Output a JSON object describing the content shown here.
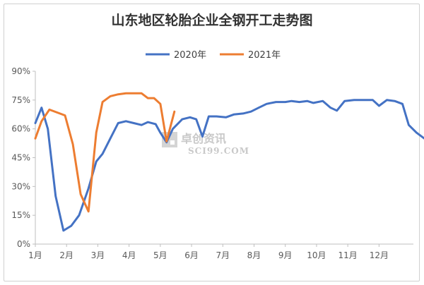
{
  "chart_data": {
    "type": "line",
    "title": "山东地区轮胎企业全钢开工走势图",
    "xlabel": "",
    "ylabel": "",
    "categories": [
      "1月",
      "2月",
      "3月",
      "4月",
      "5月",
      "6月",
      "7月",
      "8月",
      "9月",
      "10月",
      "11月",
      "12月"
    ],
    "y_ticks": [
      "0%",
      "15%",
      "30%",
      "45%",
      "60%",
      "75%",
      "90%"
    ],
    "ylim": [
      0,
      90
    ],
    "xlim": [
      1,
      13
    ],
    "grid": false,
    "legend_position": "top",
    "series": [
      {
        "name": "2020年",
        "color": "#4472C4",
        "points": [
          [
            1.0,
            63
          ],
          [
            1.2,
            71
          ],
          [
            1.4,
            60
          ],
          [
            1.65,
            25
          ],
          [
            1.9,
            7
          ],
          [
            2.15,
            9.5
          ],
          [
            2.4,
            15
          ],
          [
            2.7,
            29
          ],
          [
            2.95,
            43
          ],
          [
            3.15,
            47
          ],
          [
            3.4,
            55
          ],
          [
            3.65,
            63
          ],
          [
            3.9,
            64
          ],
          [
            4.15,
            63
          ],
          [
            4.4,
            62
          ],
          [
            4.6,
            63.5
          ],
          [
            4.85,
            62.5
          ],
          [
            5.0,
            58
          ],
          [
            5.2,
            53
          ],
          [
            5.4,
            60
          ],
          [
            5.7,
            65
          ],
          [
            5.95,
            66
          ],
          [
            6.15,
            65
          ],
          [
            6.35,
            56
          ],
          [
            6.55,
            66.5
          ],
          [
            6.8,
            66.5
          ],
          [
            7.1,
            66
          ],
          [
            7.35,
            67.5
          ],
          [
            7.65,
            68
          ],
          [
            7.9,
            69
          ],
          [
            8.15,
            71
          ],
          [
            8.4,
            73
          ],
          [
            8.7,
            74
          ],
          [
            9.0,
            74
          ],
          [
            9.2,
            74.5
          ],
          [
            9.45,
            74
          ],
          [
            9.7,
            74.5
          ],
          [
            9.9,
            73.5
          ],
          [
            10.2,
            74.5
          ],
          [
            10.45,
            71
          ],
          [
            10.65,
            69.5
          ],
          [
            10.9,
            74.5
          ],
          [
            11.2,
            75
          ],
          [
            11.5,
            75
          ],
          [
            11.8,
            75
          ],
          [
            12.0,
            72
          ],
          [
            12.25,
            75
          ],
          [
            12.5,
            74.5
          ],
          [
            12.75,
            73
          ],
          [
            12.95,
            62
          ],
          [
            13.2,
            58
          ],
          [
            13.45,
            55
          ]
        ]
      },
      {
        "name": "2021年",
        "color": "#ED7D31",
        "points": [
          [
            1.0,
            55
          ],
          [
            1.2,
            64
          ],
          [
            1.45,
            70
          ],
          [
            1.7,
            68.5
          ],
          [
            1.95,
            67
          ],
          [
            2.2,
            52
          ],
          [
            2.45,
            26
          ],
          [
            2.7,
            17
          ],
          [
            2.95,
            58
          ],
          [
            3.15,
            74
          ],
          [
            3.4,
            77
          ],
          [
            3.65,
            78
          ],
          [
            3.9,
            78.5
          ],
          [
            4.15,
            78.5
          ],
          [
            4.4,
            78.5
          ],
          [
            4.6,
            76
          ],
          [
            4.8,
            76
          ],
          [
            5.0,
            73
          ],
          [
            5.2,
            53.5
          ],
          [
            5.45,
            69
          ]
        ]
      }
    ]
  },
  "watermark": {
    "cn": "卓创资讯",
    "en": "SCI99.COM"
  }
}
